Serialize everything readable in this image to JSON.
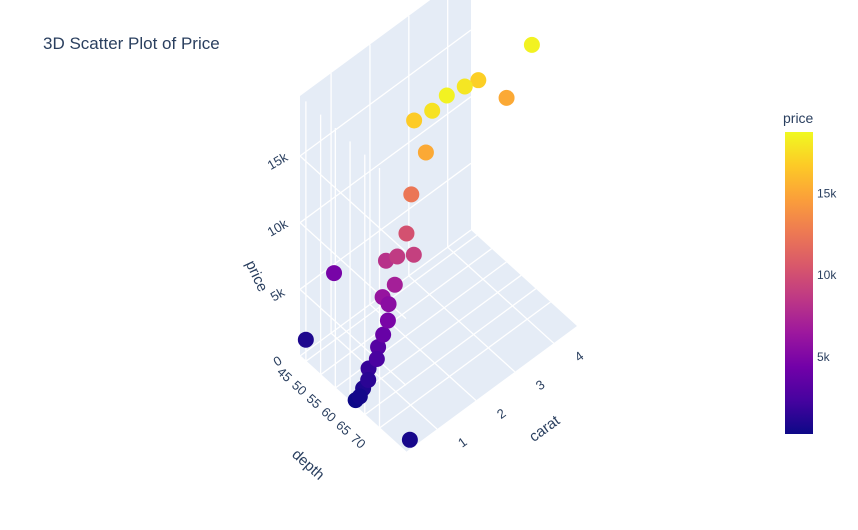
{
  "chart_data": {
    "type": "scatter",
    "subtype": "3d",
    "title": "3D Scatter Plot of Price",
    "axes": {
      "x": {
        "label": "carat",
        "ticks": [
          "1",
          "2",
          "3",
          "4"
        ],
        "range": [
          0.2,
          4.6
        ]
      },
      "y": {
        "label": "depth",
        "ticks": [
          "45",
          "50",
          "55",
          "60",
          "65",
          "70"
        ],
        "range": [
          43,
          79
        ]
      },
      "z": {
        "label": "price",
        "ticks": [
          "0",
          "5k",
          "10k",
          "15k"
        ],
        "range": [
          0,
          19500
        ]
      }
    },
    "colorbar": {
      "title": "price",
      "ticks": [
        "5k",
        "10k",
        "15k"
      ],
      "colorscale": [
        "#0d0887",
        "#46039f",
        "#7201a8",
        "#9c179e",
        "#bd3786",
        "#d8576b",
        "#ed7953",
        "#fb9f3a",
        "#fdca26",
        "#f0f921"
      ],
      "range": [
        326,
        18823
      ]
    },
    "points": [
      {
        "carat": 0.23,
        "depth": 61.5,
        "price": 326
      },
      {
        "carat": 0.3,
        "depth": 62.0,
        "price": 550
      },
      {
        "carat": 0.4,
        "depth": 61.8,
        "price": 900
      },
      {
        "carat": 0.5,
        "depth": 62.2,
        "price": 1400
      },
      {
        "carat": 0.6,
        "depth": 61.0,
        "price": 1800
      },
      {
        "carat": 0.7,
        "depth": 62.5,
        "price": 2600
      },
      {
        "carat": 0.8,
        "depth": 61.6,
        "price": 3100
      },
      {
        "carat": 0.9,
        "depth": 62.0,
        "price": 3900
      },
      {
        "carat": 1.0,
        "depth": 62.3,
        "price": 4800
      },
      {
        "carat": 1.0,
        "depth": 60.5,
        "price": 6200
      },
      {
        "carat": 1.1,
        "depth": 61.2,
        "price": 5600
      },
      {
        "carat": 1.2,
        "depth": 62.0,
        "price": 7000
      },
      {
        "carat": 1.2,
        "depth": 59.0,
        "price": 8200
      },
      {
        "carat": 1.3,
        "depth": 61.5,
        "price": 8800
      },
      {
        "carat": 1.5,
        "depth": 62.0,
        "price": 10200
      },
      {
        "carat": 1.5,
        "depth": 64.5,
        "price": 9100
      },
      {
        "carat": 1.7,
        "depth": 61.0,
        "price": 12500
      },
      {
        "carat": 2.0,
        "depth": 62.0,
        "price": 15200
      },
      {
        "carat": 2.0,
        "depth": 58.0,
        "price": 16800
      },
      {
        "carat": 2.2,
        "depth": 61.5,
        "price": 17800
      },
      {
        "carat": 2.5,
        "depth": 62.5,
        "price": 18500
      },
      {
        "carat": 3.0,
        "depth": 62.0,
        "price": 18000
      },
      {
        "carat": 3.5,
        "depth": 60.0,
        "price": 17000
      },
      {
        "carat": 4.0,
        "depth": 63.0,
        "price": 15200
      },
      {
        "carat": 4.5,
        "depth": 65.0,
        "price": 18500
      },
      {
        "carat": 0.35,
        "depth": 43.0,
        "price": 900
      },
      {
        "carat": 0.3,
        "depth": 79.0,
        "price": 700
      },
      {
        "carat": 1.0,
        "depth": 44.0,
        "price": 4700
      }
    ]
  }
}
